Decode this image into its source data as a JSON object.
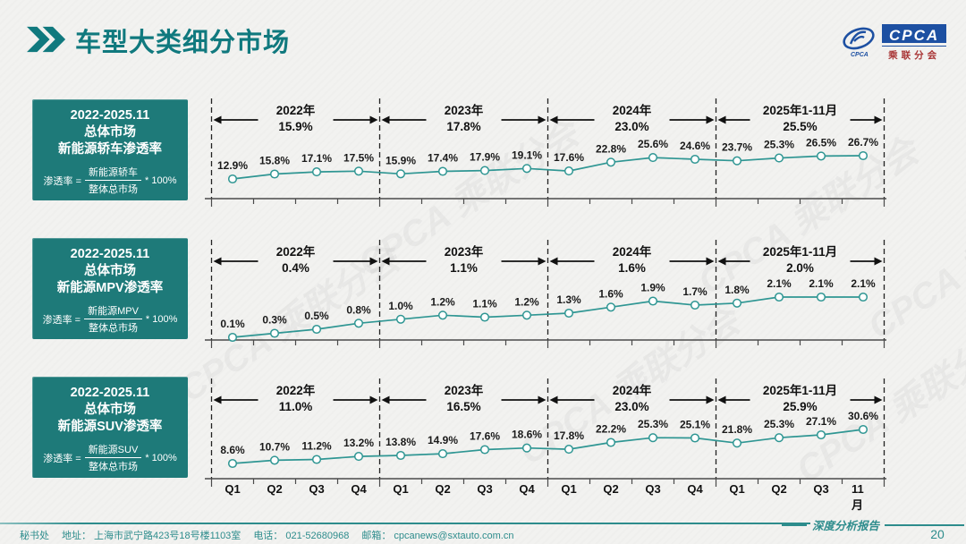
{
  "header": {
    "title": "车型大类细分市场",
    "logo": {
      "name": "CPCA",
      "subtitle": "乘联分会"
    }
  },
  "info_boxes": [
    {
      "period": "2022-2025.11",
      "market": "总体市场",
      "metric": "新能源轿车渗透率",
      "formula": {
        "label": "渗透率 =",
        "numerator": "新能源轿车",
        "denominator": "整体总市场",
        "multiplier": "* 100%"
      }
    },
    {
      "period": "2022-2025.11",
      "market": "总体市场",
      "metric": "新能源MPV渗透率",
      "formula": {
        "label": "渗透率 =",
        "numerator": "新能源MPV",
        "denominator": "整体总市场",
        "multiplier": "* 100%"
      }
    },
    {
      "period": "2022-2025.11",
      "market": "总体市场",
      "metric": "新能源SUV渗透率",
      "formula": {
        "label": "渗透率 =",
        "numerator": "新能源SUV",
        "denominator": "整体总市场",
        "multiplier": "* 100%"
      }
    }
  ],
  "chart_data": [
    {
      "type": "line",
      "title": "2022-2025.11 总体市场 新能源轿车渗透率",
      "x": [
        "Q1",
        "Q2",
        "Q3",
        "Q4",
        "Q1",
        "Q2",
        "Q3",
        "Q4",
        "Q1",
        "Q2",
        "Q3",
        "Q4",
        "Q1",
        "Q2",
        "Q3",
        "11月"
      ],
      "values": [
        12.9,
        15.8,
        17.1,
        17.5,
        15.9,
        17.4,
        17.9,
        19.1,
        17.6,
        22.8,
        25.6,
        24.6,
        23.7,
        25.3,
        26.5,
        26.7
      ],
      "unit": "%",
      "year_sections": [
        {
          "label": "2022年",
          "avg": "15.9%"
        },
        {
          "label": "2023年",
          "avg": "17.8%"
        },
        {
          "label": "2024年",
          "avg": "23.0%"
        },
        {
          "label": "2025年1-11月",
          "avg": "25.5%"
        }
      ],
      "line_color": "#2f9693",
      "legend_position": "none",
      "grid": "year-dividers-only"
    },
    {
      "type": "line",
      "title": "2022-2025.11 总体市场 新能源MPV渗透率",
      "x": [
        "Q1",
        "Q2",
        "Q3",
        "Q4",
        "Q1",
        "Q2",
        "Q3",
        "Q4",
        "Q1",
        "Q2",
        "Q3",
        "Q4",
        "Q1",
        "Q2",
        "Q3",
        "11月"
      ],
      "values": [
        0.1,
        0.3,
        0.5,
        0.8,
        1.0,
        1.2,
        1.1,
        1.2,
        1.3,
        1.6,
        1.9,
        1.7,
        1.8,
        2.1,
        2.1,
        2.1
      ],
      "unit": "%",
      "year_sections": [
        {
          "label": "2022年",
          "avg": "0.4%"
        },
        {
          "label": "2023年",
          "avg": "1.1%"
        },
        {
          "label": "2024年",
          "avg": "1.6%"
        },
        {
          "label": "2025年1-11月",
          "avg": "2.0%"
        }
      ],
      "line_color": "#2f9693",
      "legend_position": "none",
      "grid": "year-dividers-only"
    },
    {
      "type": "line",
      "title": "2022-2025.11 总体市场 新能源SUV渗透率",
      "x": [
        "Q1",
        "Q2",
        "Q3",
        "Q4",
        "Q1",
        "Q2",
        "Q3",
        "Q4",
        "Q1",
        "Q2",
        "Q3",
        "Q4",
        "Q1",
        "Q2",
        "Q3",
        "11月"
      ],
      "values": [
        8.6,
        10.7,
        11.2,
        13.2,
        13.8,
        14.9,
        17.6,
        18.6,
        17.8,
        22.2,
        25.3,
        25.1,
        21.8,
        25.3,
        27.1,
        30.6
      ],
      "unit": "%",
      "year_sections": [
        {
          "label": "2022年",
          "avg": "11.0%"
        },
        {
          "label": "2023年",
          "avg": "16.5%"
        },
        {
          "label": "2024年",
          "avg": "23.0%"
        },
        {
          "label": "2025年1-11月",
          "avg": "25.9%"
        }
      ],
      "line_color": "#2f9693",
      "legend_position": "none",
      "grid": "year-dividers-only"
    }
  ],
  "x_axis_labels": [
    "Q1",
    "Q2",
    "Q3",
    "Q4",
    "Q1",
    "Q2",
    "Q3",
    "Q4",
    "Q1",
    "Q2",
    "Q3",
    "Q4",
    "Q1",
    "Q2",
    "Q3",
    "11月"
  ],
  "watermark": "CPCA 乘联分会",
  "footer": {
    "items": [
      "秘书处",
      "地址： 上海市武宁路423号18号楼1103室",
      "电话： 021-52680968",
      "邮箱： cpcanews@sxtauto.com.cn"
    ],
    "report_label": "深度分析报告",
    "page_number": "20"
  },
  "colors": {
    "accent_teal": "#1e7a79",
    "title_teal": "#10797e",
    "line_teal": "#2f9693",
    "footer_teal": "#2d8c8c",
    "logo_blue": "#1d50a2",
    "logo_red": "#a83434"
  }
}
